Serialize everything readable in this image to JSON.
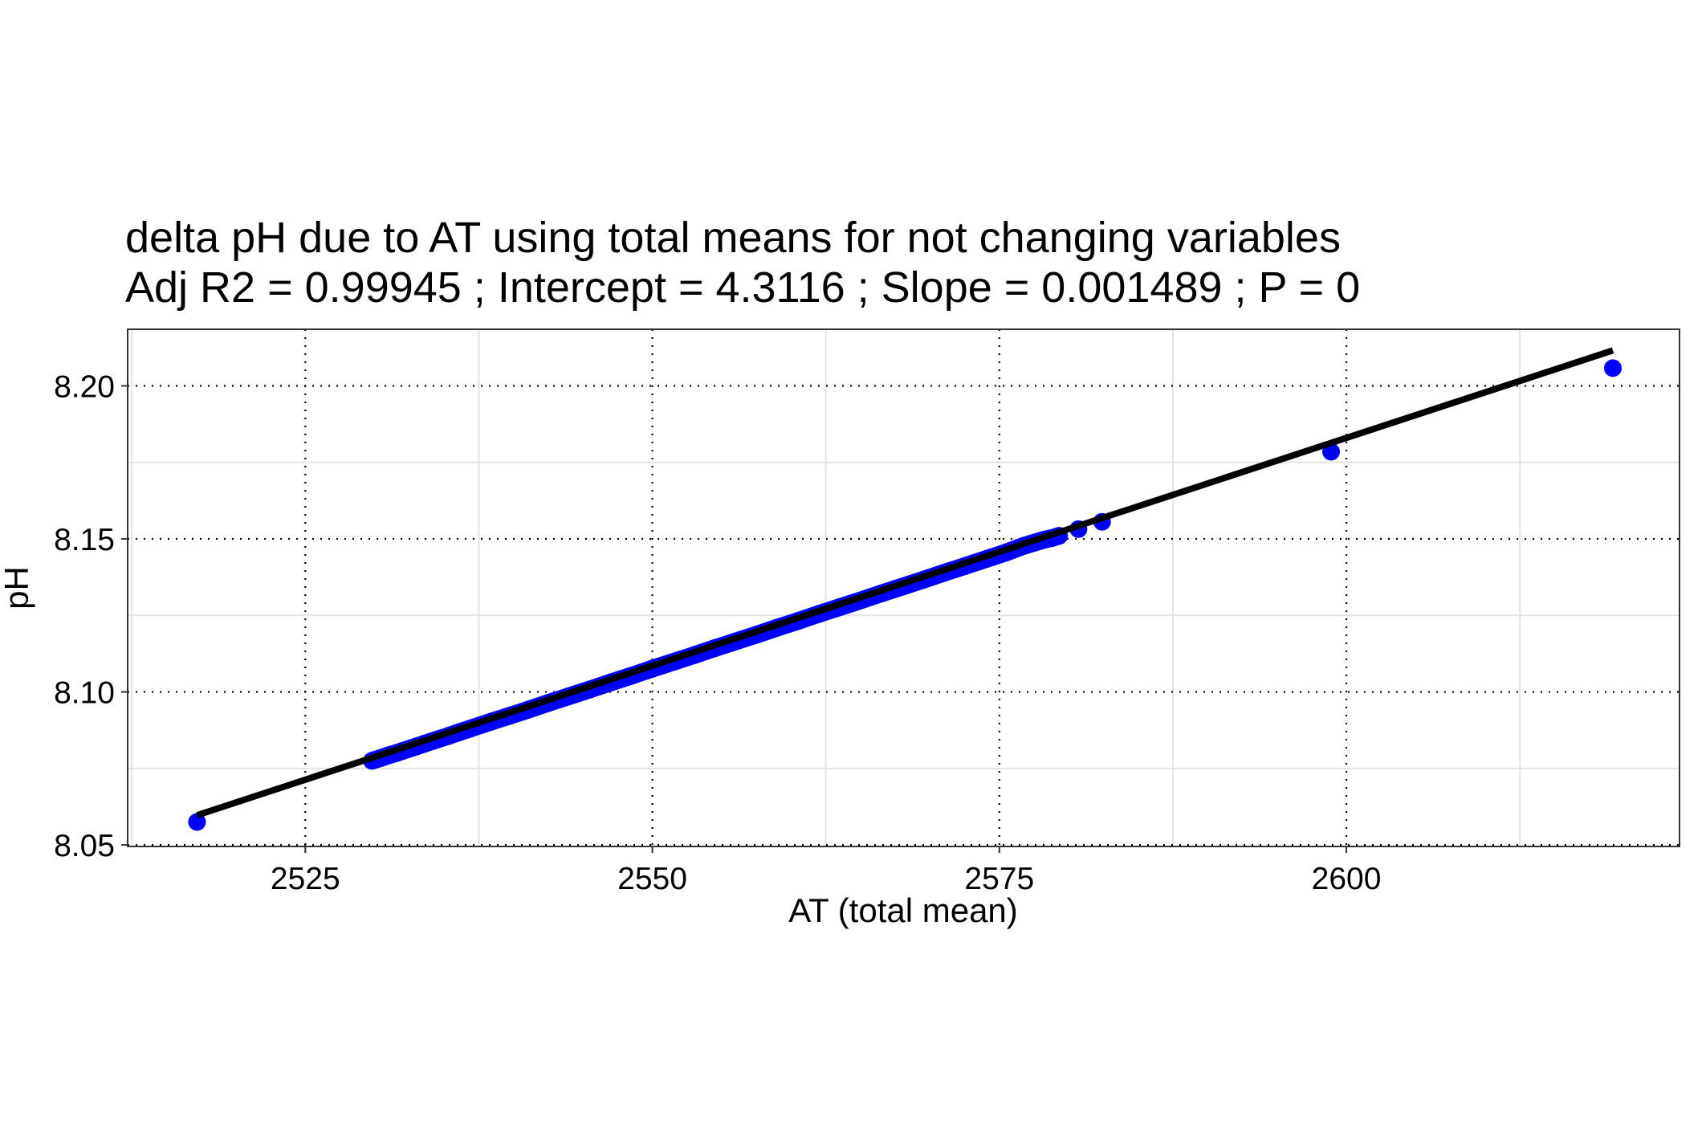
{
  "chart_data": {
    "type": "scatter",
    "title": "delta pH due to AT using total means for not changing variables",
    "subtitle": "Adj R2 =  0.99945 ; Intercept = 4.3116 ; Slope = 0.001489 ; P = 0",
    "xlabel": "AT (total mean)",
    "ylabel": "pH",
    "xlim": [
      2512.2,
      2624.0
    ],
    "ylim": [
      8.0495,
      8.2185
    ],
    "x_ticks": [
      2525,
      2550,
      2575,
      2600
    ],
    "x_tick_labels": [
      "2525",
      "2550",
      "2575",
      "2600"
    ],
    "y_ticks": [
      8.05,
      8.1,
      8.15,
      8.2
    ],
    "y_tick_labels": [
      "8.05",
      "8.10",
      "8.15",
      "8.20"
    ],
    "x_minor_gridlines": [
      2512.5,
      2537.5,
      2562.5,
      2587.5,
      2612.5
    ],
    "y_minor_gridlines": [
      8.075,
      8.125,
      8.175
    ],
    "grid": true,
    "legend": "none",
    "series": [
      {
        "kind": "points",
        "color": "#0000ff",
        "x": [
          2517.2,
          2529.8,
          2530.5,
          2531.0,
          2531.6,
          2532.0,
          2533.0,
          2533.6,
          2534.2,
          2535.3,
          2536.0,
          2536.8,
          2537.6,
          2538.4,
          2539.5,
          2541.0,
          2542.5,
          2544.0,
          2545.5,
          2547.0,
          2548.5,
          2550.0,
          2551.5,
          2553.0,
          2554.5,
          2556.0,
          2557.5,
          2559.0,
          2560.5,
          2562.0,
          2563.5,
          2565.0,
          2566.5,
          2568.0,
          2569.5,
          2571.0,
          2572.5,
          2573.5,
          2574.5,
          2575.5,
          2576.8,
          2578.2,
          2578.8,
          2579.3,
          2580.7,
          2582.4,
          2598.9,
          2619.2
        ],
        "y": [
          8.0575,
          8.0775,
          8.0785,
          8.0793,
          8.0801,
          8.0807,
          8.0822,
          8.0831,
          8.084,
          8.0856,
          8.0867,
          8.0879,
          8.0891,
          8.0903,
          8.0919,
          8.0941,
          8.0964,
          8.0986,
          8.1008,
          8.1031,
          8.1053,
          8.1076,
          8.1098,
          8.112,
          8.1143,
          8.1165,
          8.1187,
          8.121,
          8.1232,
          8.1255,
          8.1277,
          8.1299,
          8.1322,
          8.1344,
          8.1366,
          8.1389,
          8.1411,
          8.1426,
          8.1441,
          8.1456,
          8.1478,
          8.1497,
          8.1503,
          8.151,
          8.1532,
          8.1556,
          8.1785,
          8.2058
        ]
      },
      {
        "kind": "fit-line",
        "color": "#000000",
        "x": [
          2517.2,
          2619.2
        ],
        "y": [
          8.0597,
          8.2116
        ]
      }
    ]
  }
}
